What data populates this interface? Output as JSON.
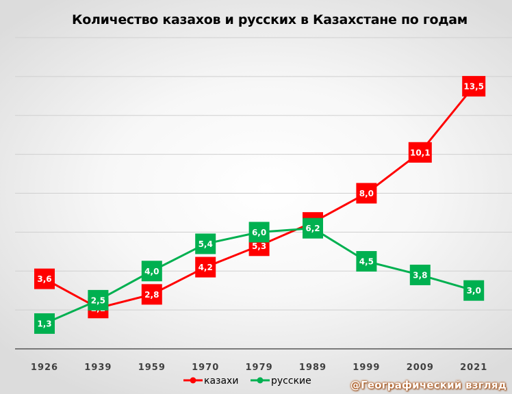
{
  "chart_data": {
    "type": "line",
    "title": "Количество казахов и русских в Казахстане по годам",
    "categories": [
      "1926",
      "1939",
      "1959",
      "1970",
      "1979",
      "1989",
      "1999",
      "2009",
      "2021"
    ],
    "series": [
      {
        "name": "казахи",
        "color": "#ff0000",
        "values": [
          3.6,
          2.1,
          2.8,
          4.2,
          5.3,
          6.5,
          8.0,
          10.1,
          13.5
        ],
        "labels": [
          "3,6",
          "2,1",
          "2,8",
          "4,2",
          "5,3",
          "6,5",
          "8,0",
          "10,1",
          "13,5"
        ]
      },
      {
        "name": "русские",
        "color": "#00b050",
        "values": [
          1.3,
          2.5,
          4.0,
          5.4,
          6.0,
          6.2,
          4.5,
          3.8,
          3.0
        ],
        "labels": [
          "1,3",
          "2,5",
          "4,0",
          "5,4",
          "6,0",
          "6,2",
          "4,5",
          "3,8",
          "3,0"
        ]
      }
    ],
    "ylim": [
      0,
      16
    ],
    "grid": true,
    "legend_position": "bottom"
  },
  "watermark": "@Географический взгляд"
}
